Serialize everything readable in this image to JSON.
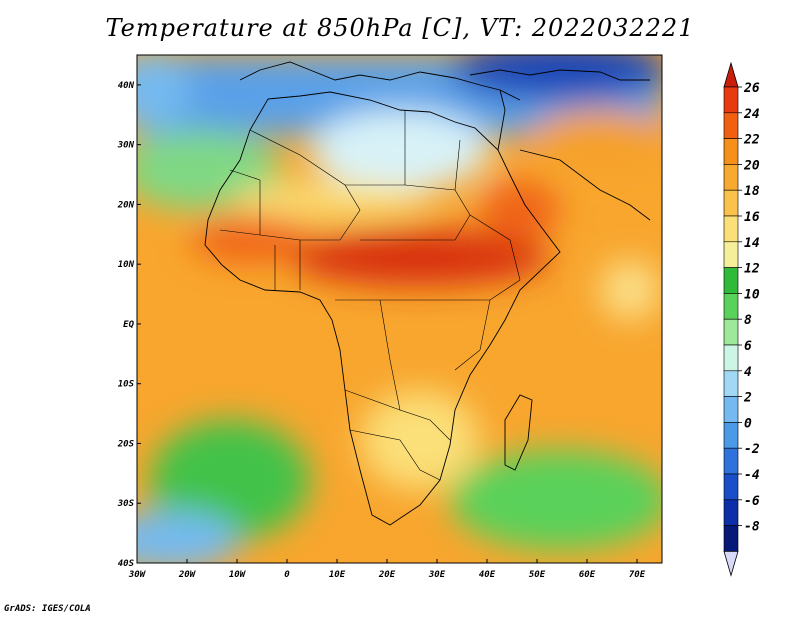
{
  "title": "Temperature at 850hPa [C], VT: 2022032221",
  "credit": "GrADS: IGES/COLA",
  "map": {
    "lon_range": [
      -30,
      75
    ],
    "lat_range": [
      -40,
      45
    ],
    "lon_ticks": [
      {
        "label": "30W",
        "value": -30
      },
      {
        "label": "20W",
        "value": -20
      },
      {
        "label": "10W",
        "value": -10
      },
      {
        "label": "0",
        "value": 0
      },
      {
        "label": "10E",
        "value": 10
      },
      {
        "label": "20E",
        "value": 20
      },
      {
        "label": "30E",
        "value": 30
      },
      {
        "label": "40E",
        "value": 40
      },
      {
        "label": "50E",
        "value": 50
      },
      {
        "label": "60E",
        "value": 60
      },
      {
        "label": "70E",
        "value": 70
      }
    ],
    "lat_ticks": [
      {
        "label": "40N",
        "value": 40
      },
      {
        "label": "30N",
        "value": 30
      },
      {
        "label": "20N",
        "value": 20
      },
      {
        "label": "10N",
        "value": 10
      },
      {
        "label": "EQ",
        "value": 0
      },
      {
        "label": "10S",
        "value": -10
      },
      {
        "label": "20S",
        "value": -20
      },
      {
        "label": "30S",
        "value": -30
      },
      {
        "label": "40S",
        "value": -40
      }
    ]
  },
  "colorbar": {
    "levels": [
      "26",
      "24",
      "22",
      "20",
      "18",
      "16",
      "14",
      "12",
      "10",
      "8",
      "6",
      "4",
      "2",
      "0",
      "-2",
      "-4",
      "-6",
      "-8"
    ],
    "colors": [
      "#e83a10",
      "#f06010",
      "#f5901a",
      "#f8aa30",
      "#fac24a",
      "#fbdf78",
      "#f6ef9a",
      "#2fba3a",
      "#5ad15a",
      "#9de89a",
      "#cdf5e6",
      "#a0d8f5",
      "#74baf0",
      "#4a9ae8",
      "#2f72dc",
      "#1a4ec8",
      "#0c2ea8",
      "#061878",
      "#d8d8f8"
    ],
    "top_color": "#c81e0a",
    "bottom_color": "#d8d8f8"
  }
}
